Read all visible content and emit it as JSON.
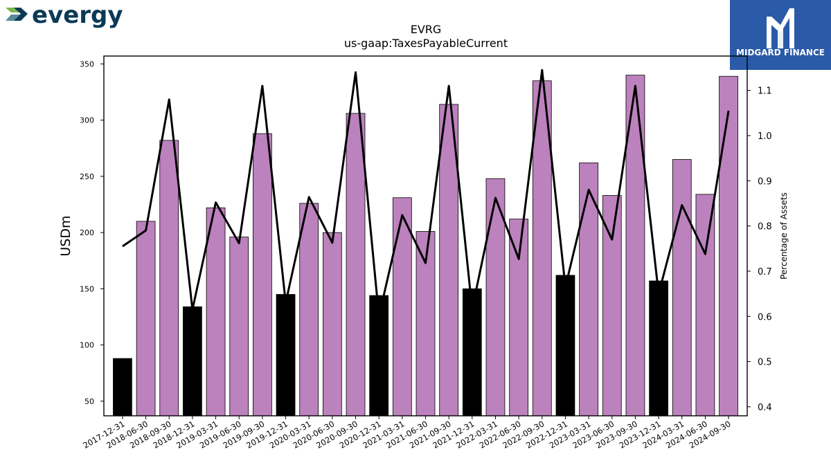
{
  "brand_left": {
    "name": "evergy",
    "color": "#0b3a57",
    "accent": "#7ab648"
  },
  "brand_right": {
    "name": "MIDGARD FINANCE",
    "bg": "#2a5aa8"
  },
  "chart_data": {
    "type": "bar",
    "title": "EVRG",
    "subtitle": "us-gaap:TaxesPayableCurrent",
    "ylabel": "USDm",
    "y2label": "Percentage of Assets",
    "ylim": [
      37,
      357
    ],
    "y2lim": [
      0.38,
      1.176
    ],
    "yticks": [
      50,
      100,
      150,
      200,
      250,
      300,
      350
    ],
    "y2ticks": [
      0.4,
      0.5,
      0.6,
      0.7,
      0.8,
      0.9,
      1.0,
      1.1
    ],
    "y2tick_labels": [
      "0.4",
      "0.5",
      "0.6",
      "0.7",
      "0.8",
      "0.9",
      "1.0",
      "1.1"
    ],
    "colors": {
      "year_end": "#000000",
      "quarter": "#bc82bd",
      "line": "#000000"
    },
    "categories": [
      "2017-12-31",
      "2018-06-30",
      "2018-09-30",
      "2018-12-31",
      "2019-03-31",
      "2019-06-30",
      "2019-09-30",
      "2019-12-31",
      "2020-03-31",
      "2020-06-30",
      "2020-09-30",
      "2020-12-31",
      "2021-03-31",
      "2021-06-30",
      "2021-09-30",
      "2021-12-31",
      "2022-03-31",
      "2022-06-30",
      "2022-09-30",
      "2022-12-31",
      "2023-03-31",
      "2023-06-30",
      "2023-09-30",
      "2023-12-31",
      "2024-03-31",
      "2024-06-30",
      "2024-09-30"
    ],
    "series": [
      {
        "values": [
          88,
          210,
          282,
          134,
          222,
          196,
          288,
          145,
          226,
          200,
          306,
          144,
          231,
          201,
          314,
          150,
          248,
          212,
          335,
          162,
          262,
          233,
          340,
          157,
          265,
          234,
          339
        ]
      },
      {
        "axis": "right",
        "values": [
          0.755,
          0.79,
          1.08,
          0.615,
          0.852,
          0.762,
          1.11,
          0.63,
          0.864,
          0.763,
          1.14,
          0.6,
          0.824,
          0.718,
          1.11,
          0.616,
          0.862,
          0.727,
          1.145,
          0.665,
          0.88,
          0.77,
          1.11,
          0.65,
          0.846,
          0.738,
          1.055
        ]
      }
    ],
    "year_end_flags": [
      true,
      false,
      false,
      true,
      false,
      false,
      false,
      true,
      false,
      false,
      false,
      true,
      false,
      false,
      false,
      true,
      false,
      false,
      false,
      true,
      false,
      false,
      false,
      true,
      false,
      false,
      false
    ]
  }
}
